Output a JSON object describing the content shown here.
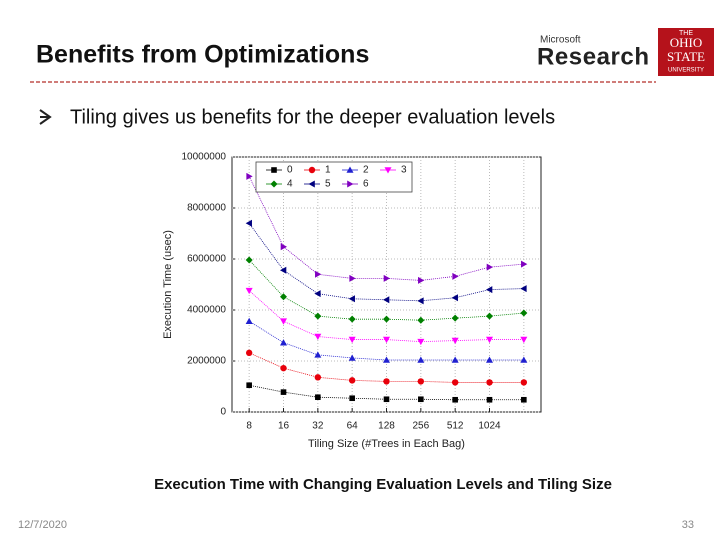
{
  "slide": {
    "title": "Benefits from Optimizations",
    "bullet": "Tiling gives us benefits for the deeper evaluation levels",
    "caption": "Execution Time with Changing Evaluation Levels and Tiling Size",
    "date": "12/7/2020",
    "page": "33",
    "logo_ms_small": "Microsoft",
    "logo_ms_big": "Research",
    "logo_osu": [
      "THE",
      "OHIO",
      "STATE",
      "UNIVERSITY"
    ]
  },
  "chart_data": {
    "type": "line",
    "x_label": "Tiling Size (#Trees in Each Bag)",
    "y_label": "Execution Time (usec)",
    "categories": [
      "8",
      "16",
      "32",
      "64",
      "128",
      "256",
      "512",
      "1024",
      null
    ],
    "ylim": [
      0,
      10000000
    ],
    "yticks": [
      0,
      2000000,
      4000000,
      6000000,
      8000000,
      10000000
    ],
    "grid": true,
    "legend_position": "upper left",
    "series": [
      {
        "name": "0",
        "color": "#000000",
        "marker": "square",
        "values": [
          1050000,
          780000,
          580000,
          540000,
          500000,
          500000,
          480000,
          480000,
          480000
        ]
      },
      {
        "name": "1",
        "color": "#e8000b",
        "marker": "circle",
        "values": [
          2320000,
          1720000,
          1360000,
          1240000,
          1200000,
          1200000,
          1160000,
          1160000,
          1160000
        ]
      },
      {
        "name": "2",
        "color": "#2020d0",
        "marker": "triangle-up",
        "values": [
          3560000,
          2720000,
          2240000,
          2120000,
          2040000,
          2040000,
          2040000,
          2040000,
          2040000
        ]
      },
      {
        "name": "3",
        "color": "#ff00ff",
        "marker": "triangle-down",
        "values": [
          4760000,
          3560000,
          2960000,
          2840000,
          2840000,
          2760000,
          2800000,
          2840000,
          2840000
        ]
      },
      {
        "name": "4",
        "color": "#008000",
        "marker": "diamond",
        "values": [
          5960000,
          4520000,
          3760000,
          3640000,
          3640000,
          3600000,
          3680000,
          3760000,
          3880000
        ]
      },
      {
        "name": "5",
        "color": "#000080",
        "marker": "triangle-left",
        "values": [
          7400000,
          5560000,
          4640000,
          4440000,
          4400000,
          4360000,
          4480000,
          4800000,
          4840000
        ]
      },
      {
        "name": "6",
        "color": "#8000c0",
        "marker": "triangle-right",
        "values": [
          9240000,
          6480000,
          5400000,
          5240000,
          5240000,
          5160000,
          5320000,
          5680000,
          5800000
        ]
      }
    ]
  }
}
